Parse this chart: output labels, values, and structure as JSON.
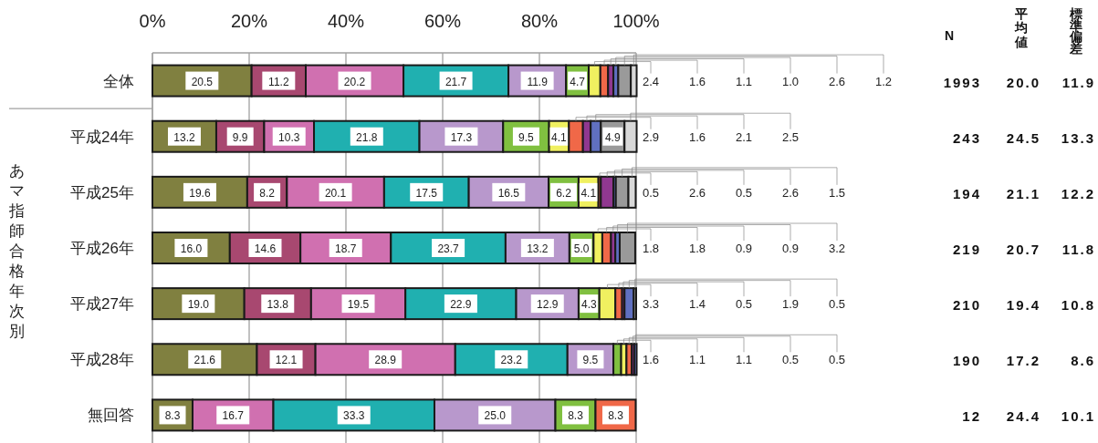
{
  "chart_data": [
    {
      "type": "bar",
      "orientation": "horizontal",
      "stacked": true,
      "ylabel": "あマ指師合格年次別",
      "categories": [
        "全体",
        "平成24年",
        "平成25年",
        "平成26年",
        "平成27年",
        "平成28年",
        "無回答"
      ],
      "xlim": [
        0,
        100
      ],
      "xticks": [
        {
          "value": 0,
          "label": "0%"
        },
        {
          "value": 20,
          "label": "20%"
        },
        {
          "value": 40,
          "label": "40%"
        },
        {
          "value": 60,
          "label": "60%"
        },
        {
          "value": 80,
          "label": "80%"
        },
        {
          "value": 100,
          "label": "100%"
        }
      ],
      "grid": "x",
      "series": [
        {
          "color": "#808040",
          "values": [
            20.5,
            13.2,
            19.6,
            16.0,
            19.0,
            21.6,
            8.3
          ],
          "value_labels": [
            "20.5",
            "13.2",
            "19.6",
            "16.0",
            "19.0",
            "21.6",
            "8.3"
          ]
        },
        {
          "color": "#a84870",
          "values": [
            11.2,
            9.9,
            8.2,
            14.6,
            13.8,
            12.1,
            null
          ],
          "value_labels": [
            "11.2",
            "9.9",
            "8.2",
            "14.6",
            "13.8",
            "12.1",
            null
          ]
        },
        {
          "color": "#d070b0",
          "values": [
            20.2,
            10.3,
            20.1,
            18.7,
            19.5,
            28.9,
            16.7
          ],
          "value_labels": [
            "20.2",
            "10.3",
            "20.1",
            "18.7",
            "19.5",
            "28.9",
            "16.7"
          ]
        },
        {
          "color": "#20b0b0",
          "values": [
            21.7,
            21.8,
            17.5,
            23.7,
            22.9,
            23.2,
            33.3
          ],
          "value_labels": [
            "21.7",
            "21.8",
            "17.5",
            "23.7",
            "22.9",
            "23.2",
            "33.3"
          ]
        },
        {
          "color": "#b898cc",
          "values": [
            11.9,
            17.3,
            16.5,
            13.2,
            12.9,
            9.5,
            25.0
          ],
          "value_labels": [
            "11.9",
            "17.3",
            "16.5",
            "13.2",
            "12.9",
            "9.5",
            "25.0"
          ]
        },
        {
          "color": "#80c040",
          "values": [
            4.7,
            9.5,
            6.2,
            5.0,
            4.3,
            1.6,
            8.3
          ],
          "value_labels": [
            "4.7",
            "9.5",
            "6.2",
            "5.0",
            "4.3",
            "1.6",
            "8.3"
          ]
        },
        {
          "color": "#f0f060",
          "values": [
            2.4,
            4.1,
            4.1,
            1.8,
            3.3,
            1.1,
            null
          ],
          "value_labels": [
            "2.4",
            "4.1",
            "4.1",
            "1.8",
            "3.3",
            "1.1",
            null
          ]
        },
        {
          "color": "#f06848",
          "values": [
            1.6,
            2.9,
            0.5,
            1.8,
            1.4,
            1.1,
            8.3
          ],
          "value_labels": [
            "1.6",
            "2.9",
            "0.5",
            "1.8",
            "1.4",
            "1.1",
            "8.3"
          ]
        },
        {
          "color": "#903890",
          "values": [
            1.1,
            1.6,
            2.6,
            0.9,
            0.5,
            0.5,
            null
          ],
          "value_labels": [
            "1.1",
            "1.6",
            "2.6",
            "0.9",
            "0.5",
            "0.5",
            null
          ]
        },
        {
          "color": "#6070c0",
          "values": [
            1.0,
            2.1,
            0.5,
            0.9,
            1.9,
            0.5,
            null
          ],
          "value_labels": [
            "1.0",
            "2.1",
            "0.5",
            "0.9",
            "1.9",
            "0.5",
            null
          ]
        },
        {
          "color": "#9a9a9a",
          "values": [
            2.6,
            4.9,
            2.6,
            3.2,
            0.5,
            null,
            null
          ],
          "value_labels": [
            "2.6",
            "4.9",
            "2.6",
            "3.2",
            "0.5",
            null,
            null
          ]
        },
        {
          "color": "#d8d8d8",
          "values": [
            1.2,
            2.5,
            1.5,
            null,
            null,
            null,
            null
          ],
          "value_labels": [
            "1.2",
            "2.5",
            "1.5",
            null,
            null,
            null,
            null
          ]
        }
      ]
    },
    {
      "type": "other",
      "categories": [
        "N",
        "平均値",
        "標準偏差"
      ],
      "cell_labels": [
        [
          "1993",
          "20.0",
          "11.9"
        ],
        [
          "243",
          "24.5",
          "13.3"
        ],
        [
          "194",
          "21.1",
          "12.2"
        ],
        [
          "219",
          "20.7",
          "11.8"
        ],
        [
          "210",
          "19.4",
          "10.8"
        ],
        [
          "190",
          "17.2",
          "8.6"
        ],
        [
          "12",
          "24.4",
          "10.1"
        ]
      ]
    }
  ]
}
